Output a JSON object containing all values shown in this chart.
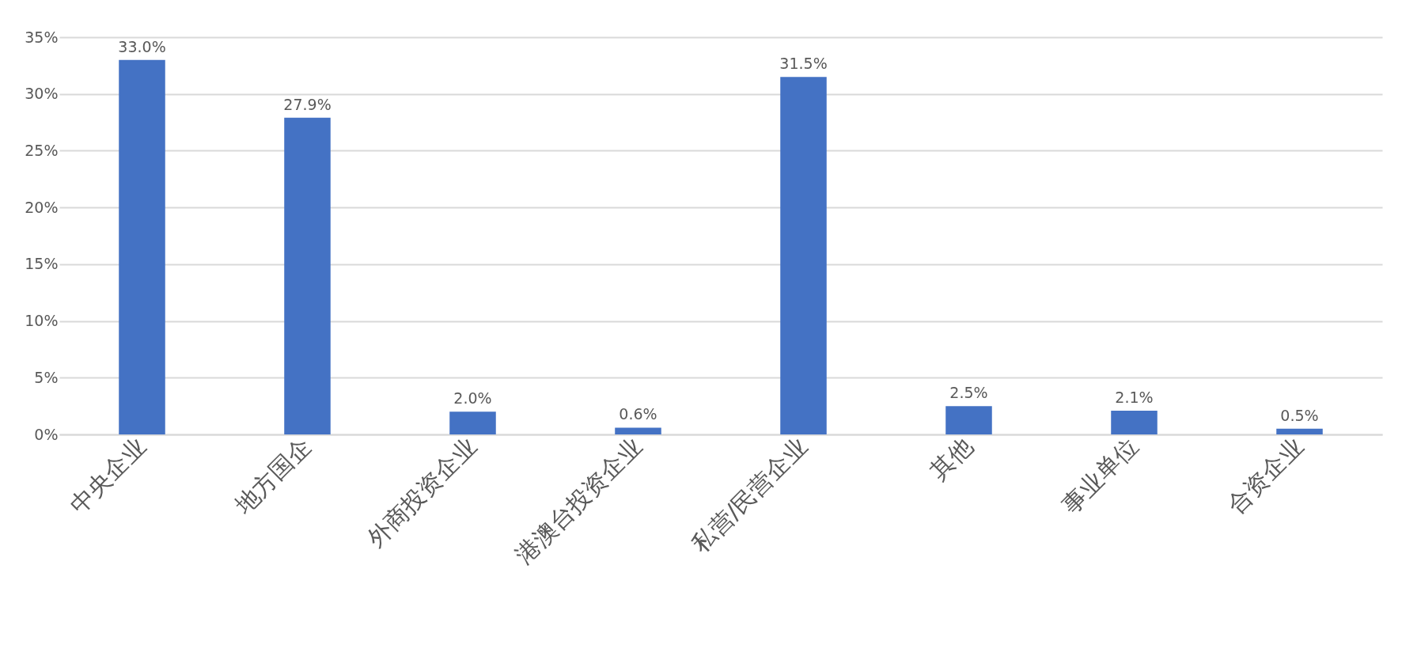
{
  "chart_data": {
    "type": "bar",
    "categories": [
      "中央企业",
      "地方国企",
      "外商投资企业",
      "港澳台投资企业",
      "私营/民营企业",
      "其他",
      "事业单位",
      "合资企业"
    ],
    "values": [
      33.0,
      27.9,
      2.0,
      0.6,
      31.5,
      2.5,
      2.1,
      0.5
    ],
    "value_labels": [
      "33.0%",
      "27.9%",
      "2.0%",
      "0.6%",
      "31.5%",
      "2.5%",
      "2.1%",
      "0.5%"
    ],
    "color": "#4472c4",
    "ylim": [
      0,
      35
    ],
    "yticks": [
      {
        "value": 0,
        "label": "0%"
      },
      {
        "value": 5,
        "label": "5%"
      },
      {
        "value": 10,
        "label": "10%"
      },
      {
        "value": 15,
        "label": "15%"
      },
      {
        "value": 20,
        "label": "20%"
      },
      {
        "value": 25,
        "label": "25%"
      },
      {
        "value": 30,
        "label": "30%"
      },
      {
        "value": 35,
        "label": "35%"
      }
    ],
    "grid": "y"
  }
}
